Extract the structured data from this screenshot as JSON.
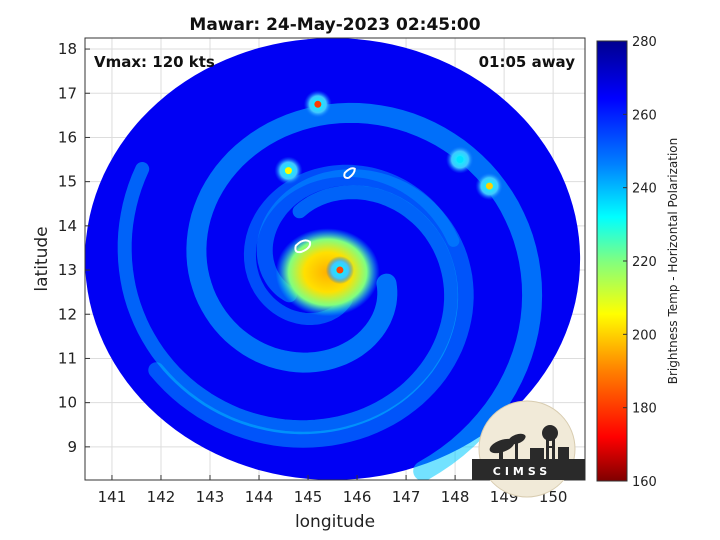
{
  "chart_data": {
    "type": "heatmap",
    "title": "Mawar: 24-May-2023 02:45:00",
    "xlabel": "longitude",
    "ylabel": "latitude",
    "xlim": [
      140.45,
      150.65
    ],
    "ylim": [
      8.25,
      18.25
    ],
    "x_ticks": [
      141,
      142,
      143,
      144,
      145,
      146,
      147,
      148,
      149,
      150
    ],
    "y_ticks": [
      9,
      10,
      11,
      12,
      13,
      14,
      15,
      16,
      17,
      18
    ],
    "grid": true,
    "annotations": {
      "left": "Vmax: 120 kts",
      "right": "01:05 away"
    },
    "colorbar": {
      "label": "Brightness Temp - Horizontal Polarization",
      "min": 160,
      "max": 280,
      "ticks": [
        160,
        180,
        200,
        220,
        240,
        260,
        280
      ],
      "colormap": [
        "#7f0000",
        "#ff0000",
        "#ff8000",
        "#ffff00",
        "#80ff80",
        "#00ffff",
        "#0080ff",
        "#0000ff",
        "#00008f"
      ]
    },
    "swath": {
      "center_lon": 145.5,
      "center_lat": 13.25,
      "lon_radius": 5.05,
      "lat_radius": 5.0,
      "background_value": 266
    },
    "storm_center": {
      "lon": 145.4,
      "lat": 12.95,
      "min_value": 188
    },
    "cold_cells": [
      {
        "lon": 145.2,
        "lat": 16.75,
        "value": 180
      },
      {
        "lon": 144.6,
        "lat": 15.25,
        "value": 205
      },
      {
        "lon": 148.7,
        "lat": 14.9,
        "value": 200
      },
      {
        "lon": 148.1,
        "lat": 15.5,
        "value": 235
      },
      {
        "lon": 145.65,
        "lat": 13.0,
        "value": 182
      }
    ],
    "logo": "CIMSS"
  }
}
